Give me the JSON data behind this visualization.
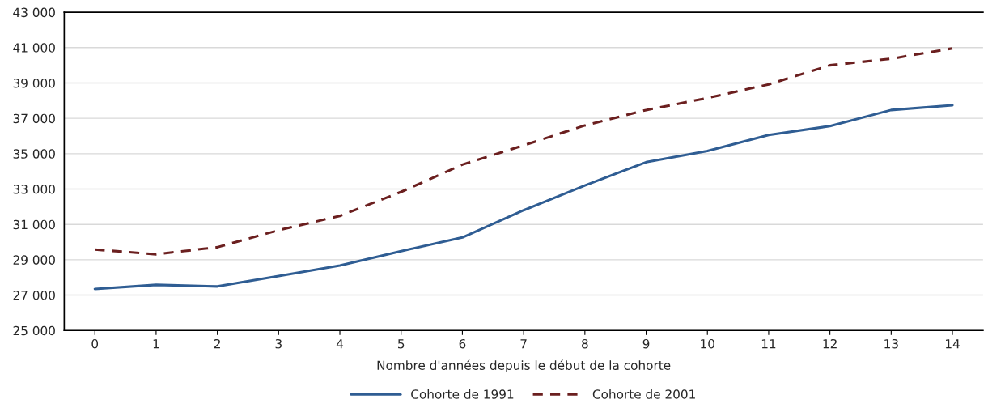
{
  "chart_data": {
    "type": "line",
    "xlabel": "Nombre d'années depuis le début de la cohorte",
    "categories": [
      "0",
      "1",
      "2",
      "3",
      "4",
      "5",
      "6",
      "7",
      "8",
      "9",
      "10",
      "11",
      "12",
      "13",
      "14"
    ],
    "series": [
      {
        "name": "Cohorte de 1991",
        "color": "#2f5d93",
        "line_style": "solid",
        "values": [
          27350,
          27580,
          27490,
          28080,
          28670,
          29490,
          30260,
          31800,
          33200,
          34520,
          35150,
          36060,
          36560,
          37470,
          37740
        ]
      },
      {
        "name": "Cohorte de 2001",
        "color": "#6b1f1f",
        "line_style": "dashed",
        "values": [
          29580,
          29310,
          29710,
          30670,
          31480,
          32840,
          34380,
          35470,
          36600,
          37470,
          38150,
          38920,
          40000,
          40370,
          40960
        ]
      }
    ],
    "ylim": [
      25000,
      43000
    ],
    "yticks": [
      {
        "value": 25000,
        "label": "25 000"
      },
      {
        "value": 27000,
        "label": "27 000"
      },
      {
        "value": 29000,
        "label": "29 000"
      },
      {
        "value": 31000,
        "label": "31 000"
      },
      {
        "value": 33000,
        "label": "33 000"
      },
      {
        "value": 35000,
        "label": "35 000"
      },
      {
        "value": 37000,
        "label": "37 000"
      },
      {
        "value": 39000,
        "label": "39 000"
      },
      {
        "value": 41000,
        "label": "41 000"
      },
      {
        "value": 43000,
        "label": "43 000"
      }
    ],
    "grid": "y",
    "legend": "bottom",
    "marker": "none"
  }
}
